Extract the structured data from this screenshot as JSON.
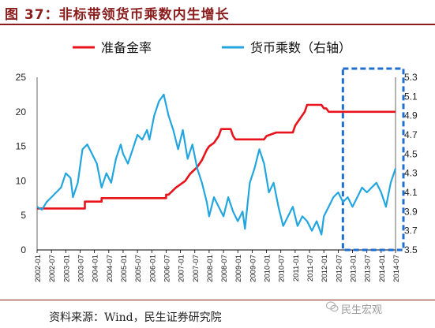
{
  "header": {
    "title": "图 37：非标带领货币乘数内生增长"
  },
  "footer": {
    "source": "资料来源：Wind，民生证券研究院",
    "watermark": "民生宏观"
  },
  "colors": {
    "title": "#8b1c1c",
    "reserve": "#e8131b",
    "multiplier": "#23a6df",
    "highlight": "#1f6fd1"
  },
  "chart_data": {
    "type": "line",
    "title": "",
    "legend": {
      "position": "top",
      "entries": [
        "准备金率",
        "货币乘数（右轴）"
      ]
    },
    "x_categories": [
      "2002-01",
      "2002-07",
      "2003-01",
      "2003-07",
      "2004-01",
      "2004-07",
      "2005-01",
      "2005-07",
      "2006-01",
      "2006-07",
      "2007-01",
      "2007-07",
      "2008-01",
      "2008-07",
      "2009-01",
      "2009-07",
      "2010-01",
      "2010-07",
      "2011-01",
      "2011-07",
      "2012-01",
      "2012-07",
      "2013-01",
      "2013-07",
      "2014-01",
      "2014-07"
    ],
    "y_left": {
      "range": [
        0,
        25
      ],
      "ticks": [
        "0",
        "5",
        "10",
        "15",
        "20",
        "25"
      ]
    },
    "y_right": {
      "range": [
        3.5,
        5.3
      ],
      "ticks": [
        "3.5",
        "3.7",
        "3.9",
        "4.1",
        "4.3",
        "4.5",
        "4.7",
        "4.9",
        "5.1",
        "5.3"
      ]
    },
    "highlight_region": {
      "from": "2012-07",
      "to": "2014-07",
      "style": "dashed-box"
    },
    "series": [
      {
        "name": "准备金率",
        "axis": "left",
        "points": [
          [
            "2002-01",
            6
          ],
          [
            "2003-09",
            6
          ],
          [
            "2003-09",
            7
          ],
          [
            "2004-04",
            7
          ],
          [
            "2004-04",
            7.5
          ],
          [
            "2005-12",
            7.5
          ],
          [
            "2006-07",
            7.5
          ],
          [
            "2006-07",
            8
          ],
          [
            "2006-08",
            8
          ],
          [
            "2006-11",
            9
          ],
          [
            "2007-01",
            9.5
          ],
          [
            "2007-03",
            10
          ],
          [
            "2007-05",
            11
          ],
          [
            "2007-08",
            12
          ],
          [
            "2007-10",
            13
          ],
          [
            "2007-12",
            14.5
          ],
          [
            "2008-01",
            15
          ],
          [
            "2008-03",
            15.5
          ],
          [
            "2008-05",
            16.5
          ],
          [
            "2008-06",
            17.5
          ],
          [
            "2008-10",
            17.5
          ],
          [
            "2008-11",
            16.5
          ],
          [
            "2008-12",
            16
          ],
          [
            "2009-12",
            16
          ],
          [
            "2010-01",
            16.5
          ],
          [
            "2010-05",
            17
          ],
          [
            "2010-12",
            17
          ],
          [
            "2011-01",
            18
          ],
          [
            "2011-03",
            19
          ],
          [
            "2011-05",
            20
          ],
          [
            "2011-06",
            21
          ],
          [
            "2011-12",
            21
          ],
          [
            "2012-01",
            20.5
          ],
          [
            "2012-02",
            20.5
          ],
          [
            "2012-03",
            20
          ],
          [
            "2014-07",
            20
          ]
        ]
      },
      {
        "name": "货币乘数（右轴）",
        "axis": "right",
        "points": [
          [
            "2002-01",
            3.95
          ],
          [
            "2002-03",
            3.92
          ],
          [
            "2002-05",
            4.0
          ],
          [
            "2002-07",
            4.05
          ],
          [
            "2002-09",
            4.1
          ],
          [
            "2002-11",
            4.15
          ],
          [
            "2003-01",
            4.3
          ],
          [
            "2003-03",
            4.25
          ],
          [
            "2003-04",
            4.05
          ],
          [
            "2003-06",
            4.2
          ],
          [
            "2003-08",
            4.55
          ],
          [
            "2003-10",
            4.6
          ],
          [
            "2003-12",
            4.5
          ],
          [
            "2004-02",
            4.4
          ],
          [
            "2004-04",
            4.15
          ],
          [
            "2004-06",
            4.3
          ],
          [
            "2004-08",
            4.2
          ],
          [
            "2004-10",
            4.45
          ],
          [
            "2004-12",
            4.6
          ],
          [
            "2005-01",
            4.5
          ],
          [
            "2005-03",
            4.4
          ],
          [
            "2005-05",
            4.55
          ],
          [
            "2005-07",
            4.7
          ],
          [
            "2005-09",
            4.65
          ],
          [
            "2005-11",
            4.75
          ],
          [
            "2005-12",
            4.65
          ],
          [
            "2006-02",
            4.9
          ],
          [
            "2006-04",
            5.05
          ],
          [
            "2006-06",
            5.12
          ],
          [
            "2006-08",
            4.9
          ],
          [
            "2006-10",
            4.75
          ],
          [
            "2006-12",
            4.55
          ],
          [
            "2007-02",
            4.75
          ],
          [
            "2007-04",
            4.45
          ],
          [
            "2007-06",
            4.6
          ],
          [
            "2007-08",
            4.35
          ],
          [
            "2007-10",
            4.2
          ],
          [
            "2007-12",
            4.0
          ],
          [
            "2008-01",
            3.85
          ],
          [
            "2008-03",
            4.05
          ],
          [
            "2008-05",
            3.95
          ],
          [
            "2008-07",
            3.85
          ],
          [
            "2008-09",
            4.05
          ],
          [
            "2008-11",
            3.9
          ],
          [
            "2009-01",
            3.8
          ],
          [
            "2009-03",
            3.9
          ],
          [
            "2009-04",
            3.72
          ],
          [
            "2009-06",
            4.2
          ],
          [
            "2009-08",
            4.35
          ],
          [
            "2009-10",
            4.55
          ],
          [
            "2009-12",
            4.4
          ],
          [
            "2010-02",
            4.1
          ],
          [
            "2010-04",
            4.2
          ],
          [
            "2010-06",
            3.95
          ],
          [
            "2010-08",
            3.75
          ],
          [
            "2010-10",
            3.85
          ],
          [
            "2010-12",
            3.95
          ],
          [
            "2011-02",
            3.75
          ],
          [
            "2011-04",
            3.85
          ],
          [
            "2011-06",
            3.8
          ],
          [
            "2011-08",
            3.7
          ],
          [
            "2011-10",
            3.8
          ],
          [
            "2011-12",
            3.66
          ],
          [
            "2012-01",
            3.85
          ],
          [
            "2012-03",
            3.95
          ],
          [
            "2012-05",
            4.05
          ],
          [
            "2012-07",
            4.1
          ],
          [
            "2012-09",
            4.0
          ],
          [
            "2012-11",
            4.05
          ],
          [
            "2013-01",
            3.95
          ],
          [
            "2013-03",
            4.05
          ],
          [
            "2013-05",
            4.15
          ],
          [
            "2013-07",
            4.1
          ],
          [
            "2013-09",
            4.15
          ],
          [
            "2013-11",
            4.2
          ],
          [
            "2014-01",
            4.1
          ],
          [
            "2014-03",
            3.95
          ],
          [
            "2014-05",
            4.2
          ],
          [
            "2014-07",
            4.35
          ]
        ]
      }
    ]
  }
}
